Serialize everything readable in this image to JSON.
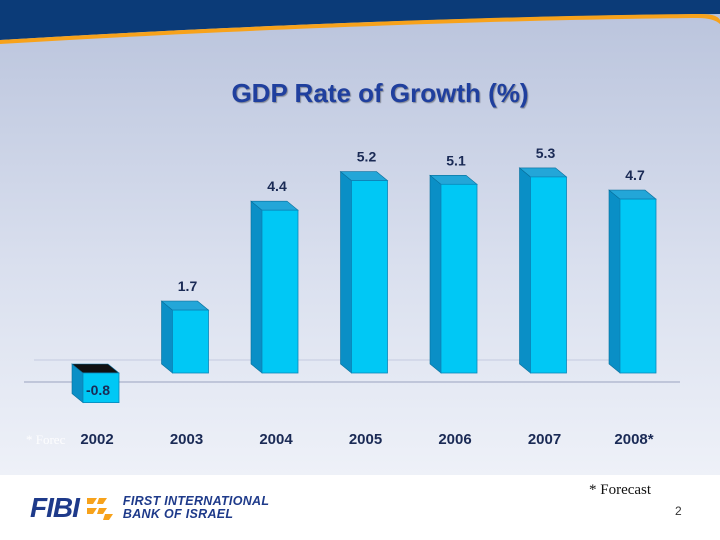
{
  "slide": {
    "title": "GDP Rate of Growth (%)",
    "page_number": "2",
    "forecast_note": "* Forecast",
    "ghost_note": "* Forec"
  },
  "brand": {
    "wordmark": "FIBI",
    "name_line1": "FIRST INTERNATIONAL",
    "name_line2": "BANK OF ISRAEL"
  },
  "colors": {
    "bar_face": "#00c8f5",
    "bar_side": "#0a8fc6",
    "bar_top": "#23a6d8",
    "neg_top": "#111111",
    "title": "#1f3f9e",
    "brand_blue": "#1e3a8a",
    "brand_orange": "#f7a21b"
  },
  "chart_data": {
    "type": "bar",
    "title": "GDP Rate of Growth (%)",
    "categories": [
      "2002",
      "2003",
      "2004",
      "2005",
      "2006",
      "2007",
      "2008*"
    ],
    "values": [
      -0.8,
      1.7,
      4.4,
      5.2,
      5.1,
      5.3,
      4.7
    ],
    "data_labels": [
      "-0.8",
      "1.7",
      "4.4",
      "5.2",
      "5.1",
      "5.3",
      "4.7"
    ],
    "xlabel": "",
    "ylabel": "",
    "ylim": [
      -0.8,
      5.3
    ],
    "grid": false,
    "annotation": "* Forecast"
  }
}
